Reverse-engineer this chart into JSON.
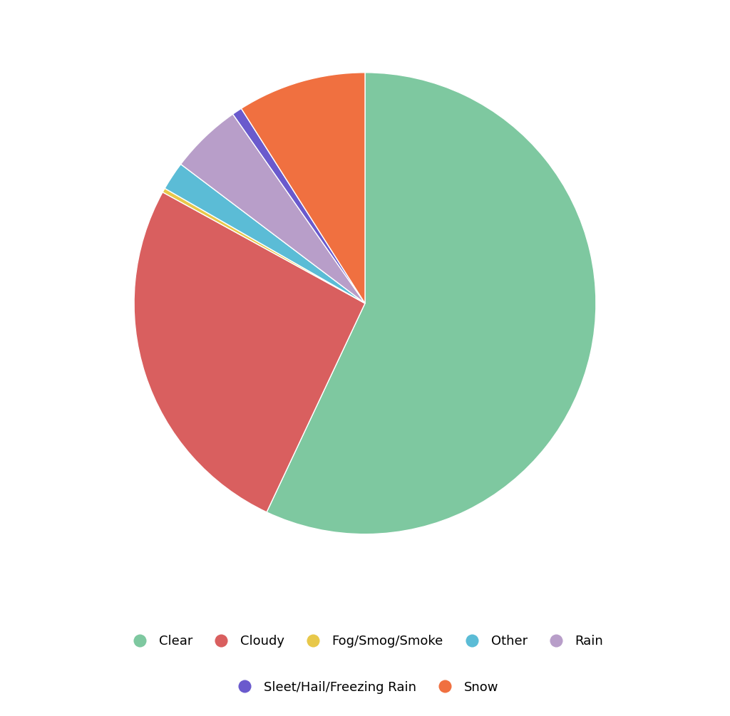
{
  "labels": [
    "Clear",
    "Cloudy",
    "Fog/Smog/Smoke",
    "Other",
    "Rain",
    "Sleet/Hail/Freezing Rain",
    "Snow"
  ],
  "values": [
    57.0,
    26.0,
    0.3,
    2.0,
    5.0,
    0.7,
    9.0
  ],
  "colors": [
    "#7ec8a0",
    "#d95f5f",
    "#e8c84a",
    "#5bbcd6",
    "#b89ec9",
    "#6a5acd",
    "#f07040"
  ],
  "background_color": "#ffffff",
  "legend_fontsize": 13,
  "figsize": [
    10.24,
    10.05
  ],
  "dpi": 100,
  "startangle": 90,
  "wedge_linewidth": 1.0,
  "wedge_edgecolor": "#ffffff"
}
